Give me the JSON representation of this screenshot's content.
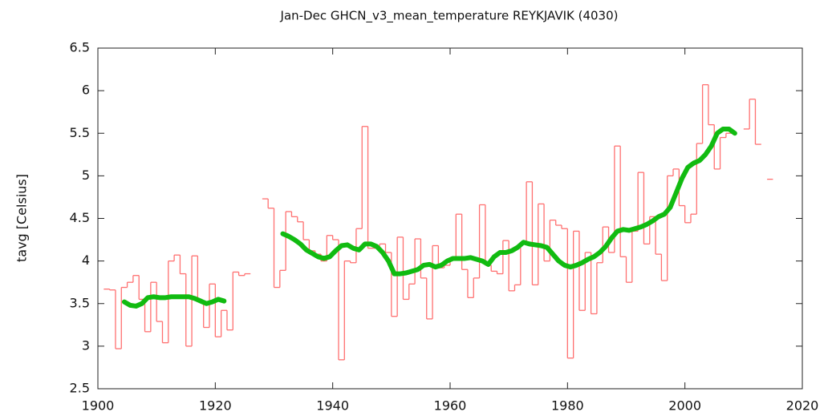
{
  "chart_data": {
    "type": "line",
    "title": "Jan-Dec GHCN_v3_mean_temperature REYKJAVIK (4030)",
    "ylabel": "tavg [Celsius]",
    "x": [
      1901,
      1902,
      1903,
      1904,
      1905,
      1906,
      1907,
      1908,
      1909,
      1910,
      1911,
      1912,
      1913,
      1914,
      1915,
      1916,
      1917,
      1918,
      1919,
      1920,
      1921,
      1922,
      1923,
      1924,
      1925,
      1926,
      1927,
      1928,
      1929,
      1930,
      1931,
      1932,
      1933,
      1934,
      1935,
      1936,
      1937,
      1938,
      1939,
      1940,
      1941,
      1942,
      1943,
      1944,
      1945,
      1946,
      1947,
      1948,
      1949,
      1950,
      1951,
      1952,
      1953,
      1954,
      1955,
      1956,
      1957,
      1958,
      1959,
      1960,
      1961,
      1962,
      1963,
      1964,
      1965,
      1966,
      1967,
      1968,
      1969,
      1970,
      1971,
      1972,
      1973,
      1974,
      1975,
      1976,
      1977,
      1978,
      1979,
      1980,
      1981,
      1982,
      1983,
      1984,
      1985,
      1986,
      1987,
      1988,
      1989,
      1990,
      1991,
      1992,
      1993,
      1994,
      1995,
      1996,
      1997,
      1998,
      1999,
      2000,
      2001,
      2002,
      2003,
      2004,
      2005,
      2006,
      2007,
      2008,
      2009,
      2010,
      2011,
      2012,
      2013,
      2014
    ],
    "series": [
      {
        "color": "#ff7070",
        "style": "step",
        "values": [
          3.67,
          3.66,
          2.97,
          3.69,
          3.75,
          3.83,
          3.55,
          3.17,
          3.75,
          3.29,
          3.04,
          4.0,
          4.07,
          3.85,
          3.0,
          4.06,
          3.52,
          3.22,
          3.73,
          3.11,
          3.42,
          3.19,
          3.87,
          3.83,
          3.85,
          null,
          null,
          4.73,
          4.62,
          3.69,
          3.89,
          4.58,
          4.52,
          4.46,
          4.25,
          4.12,
          4.08,
          4.0,
          4.3,
          4.25,
          2.84,
          4.0,
          3.98,
          4.38,
          5.58,
          4.15,
          4.15,
          4.2,
          4.1,
          3.35,
          4.28,
          3.55,
          3.73,
          4.26,
          3.8,
          3.32,
          4.18,
          3.92,
          3.95,
          4.03,
          4.55,
          3.9,
          3.57,
          3.8,
          4.66,
          3.95,
          3.88,
          3.85,
          4.24,
          3.65,
          3.72,
          4.22,
          4.93,
          3.72,
          4.67,
          4.0,
          4.48,
          4.42,
          4.38,
          2.86,
          4.35,
          3.42,
          4.1,
          3.38,
          3.98,
          4.4,
          4.1,
          5.35,
          4.05,
          3.75,
          4.35,
          5.04,
          4.2,
          4.52,
          4.08,
          3.77,
          5.0,
          5.08,
          4.65,
          4.45,
          4.55,
          5.38,
          6.07,
          5.6,
          5.08,
          5.45,
          5.5,
          null,
          null,
          5.55,
          5.9,
          5.37,
          null,
          4.96
        ]
      },
      {
        "color": "#11bb11",
        "style": "smooth",
        "values": [
          null,
          null,
          null,
          3.52,
          3.48,
          3.47,
          3.5,
          3.57,
          3.58,
          3.57,
          3.57,
          3.58,
          3.58,
          3.58,
          3.58,
          3.56,
          3.53,
          3.5,
          3.52,
          3.55,
          3.53,
          null,
          null,
          null,
          null,
          null,
          null,
          null,
          null,
          null,
          4.32,
          4.29,
          4.25,
          4.2,
          4.13,
          4.09,
          4.05,
          4.03,
          4.05,
          4.12,
          4.18,
          4.19,
          4.15,
          4.13,
          4.2,
          4.2,
          4.17,
          4.1,
          4.0,
          3.85,
          3.85,
          3.86,
          3.88,
          3.9,
          3.95,
          3.96,
          3.93,
          3.95,
          4.0,
          4.03,
          4.03,
          4.03,
          4.04,
          4.02,
          4.0,
          3.96,
          4.05,
          4.1,
          4.1,
          4.12,
          4.16,
          4.22,
          4.2,
          4.19,
          4.18,
          4.16,
          4.08,
          4.0,
          3.95,
          3.93,
          3.95,
          3.98,
          4.02,
          4.05,
          4.1,
          4.17,
          4.27,
          4.35,
          4.37,
          4.36,
          4.38,
          4.4,
          4.43,
          4.47,
          4.52,
          4.55,
          4.63,
          4.8,
          4.97,
          5.1,
          5.15,
          5.18,
          5.25,
          5.35,
          5.5,
          5.55,
          5.55,
          5.5,
          null,
          null,
          null,
          null,
          null,
          null
        ]
      }
    ],
    "xlim": [
      1900,
      2020
    ],
    "xticks": [
      1900,
      1920,
      1940,
      1960,
      1980,
      2000,
      2020
    ],
    "ylim": [
      2.5,
      6.5
    ],
    "yticks": [
      2.5,
      3,
      3.5,
      4,
      4.5,
      5,
      5.5,
      6,
      6.5
    ],
    "grid": false
  }
}
